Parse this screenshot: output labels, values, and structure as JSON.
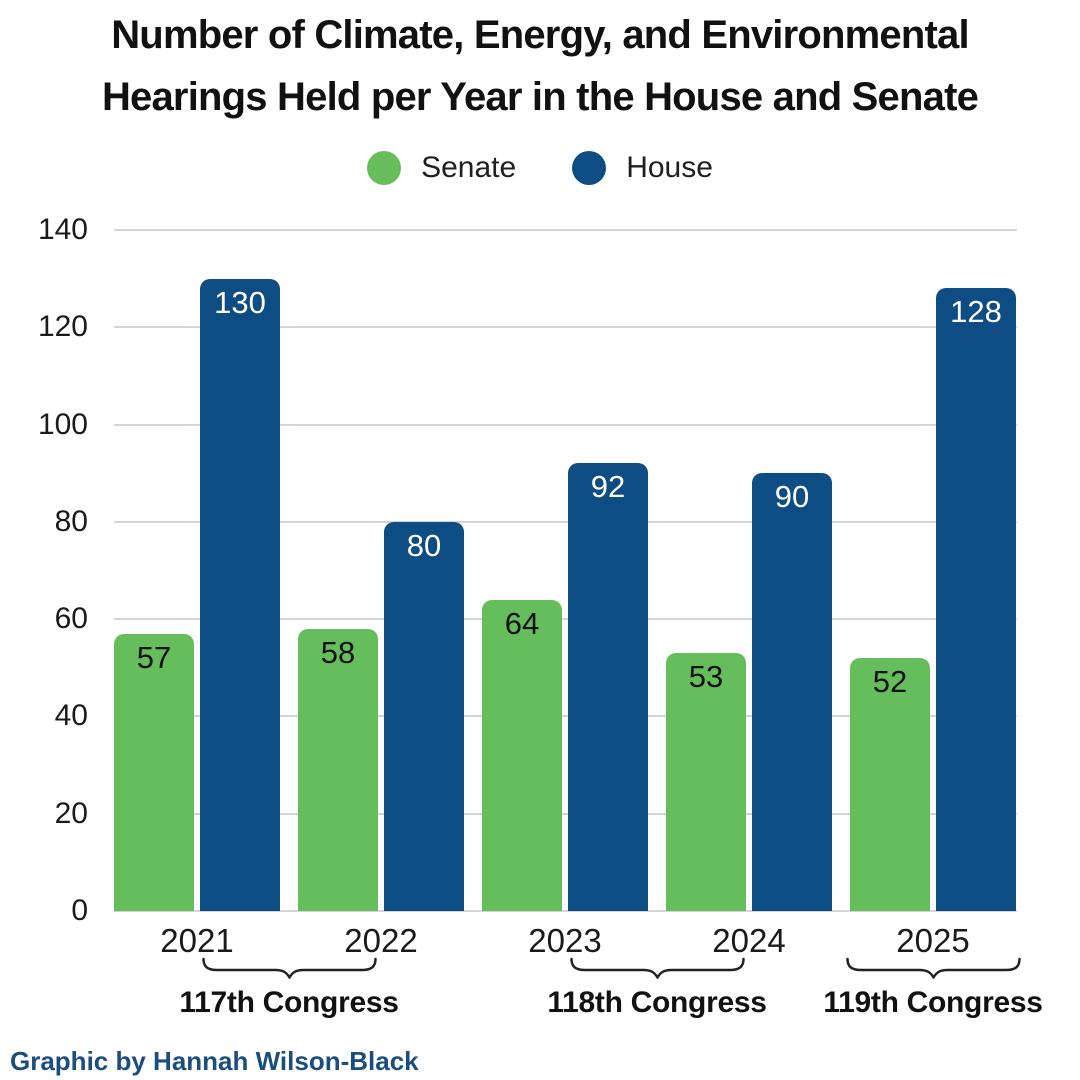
{
  "title": {
    "line1": "Number of Climate, Energy, and Environmental",
    "line2": "Hearings Held per Year in the House and Senate"
  },
  "legend": {
    "items": [
      {
        "label": "Senate",
        "color": "#65bd5b"
      },
      {
        "label": "House",
        "color": "#0e4d83"
      }
    ]
  },
  "credit": {
    "text": "Graphic by Hannah Wilson-Black",
    "color": "#1b4e7e"
  },
  "chart_data": {
    "type": "bar",
    "title": "Number of Climate, Energy, and Environmental Hearings Held per Year in the House and Senate",
    "categories": [
      "2021",
      "2022",
      "2023",
      "2024",
      "2025"
    ],
    "series": [
      {
        "name": "Senate",
        "color": "#65bd5b",
        "label_color": "#111111",
        "values": [
          57,
          58,
          64,
          53,
          52
        ]
      },
      {
        "name": "House",
        "color": "#0e4d83",
        "label_color": "#ffffff",
        "values": [
          130,
          80,
          92,
          90,
          128
        ]
      }
    ],
    "xlabel": "",
    "ylabel": "",
    "ylim": [
      0,
      140
    ],
    "ytick_step": 20,
    "grid": true,
    "gridline_color": "#d4d4d4",
    "legend_position": "top",
    "annotations": [
      {
        "label": "117th Congress",
        "span": [
          "2021",
          "2022"
        ]
      },
      {
        "label": "118th Congress",
        "span": [
          "2023",
          "2024"
        ]
      },
      {
        "label": "119th Congress",
        "span": [
          "2025",
          "2025"
        ]
      }
    ]
  }
}
